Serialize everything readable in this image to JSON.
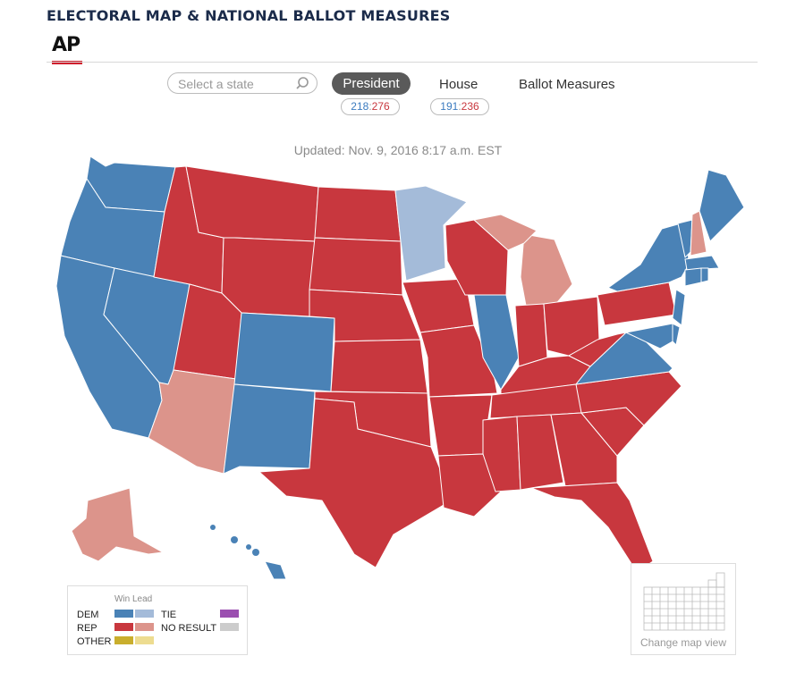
{
  "header": {
    "title": "ELECTORAL MAP & NATIONAL BALLOT MEASURES",
    "logo_text": "AP"
  },
  "search": {
    "placeholder": "Select a state"
  },
  "tabs": [
    {
      "label": "President",
      "active": true,
      "dem": "218",
      "rep": "276"
    },
    {
      "label": "House",
      "active": false,
      "dem": "191",
      "rep": "236"
    },
    {
      "label": "Ballot Measures",
      "active": false
    }
  ],
  "updated": "Updated: Nov. 9, 2016 8:17 a.m. EST",
  "colors": {
    "dem_win": "#4a82b6",
    "dem_lead": "#a4bbd9",
    "rep_win": "#c8373e",
    "rep_lead": "#dc948b",
    "other_win": "#c9ae2d",
    "other_lead": "#eddc90",
    "tie": "#9b4fb0",
    "no_result": "#cccccc"
  },
  "map_states": {
    "WA": "dem_win",
    "OR": "dem_win",
    "CA": "dem_win",
    "NV": "dem_win",
    "CO": "dem_win",
    "NM": "dem_win",
    "HI": "dem_win",
    "IL": "dem_win",
    "VA": "dem_win",
    "NY": "dem_win",
    "VT": "dem_win",
    "ME": "dem_win",
    "MA": "dem_win",
    "CT": "dem_win",
    "RI": "dem_win",
    "NJ": "dem_win",
    "DE": "dem_win",
    "MD": "dem_win",
    "MN": "dem_lead",
    "ID": "rep_win",
    "MT": "rep_win",
    "WY": "rep_win",
    "UT": "rep_win",
    "ND": "rep_win",
    "SD": "rep_win",
    "NE": "rep_win",
    "KS": "rep_win",
    "OK": "rep_win",
    "TX": "rep_win",
    "IA": "rep_win",
    "MO": "rep_win",
    "AR": "rep_win",
    "LA": "rep_win",
    "WI": "rep_win",
    "IN": "rep_win",
    "OH": "rep_win",
    "KY": "rep_win",
    "TN": "rep_win",
    "MS": "rep_win",
    "AL": "rep_win",
    "GA": "rep_win",
    "FL": "rep_win",
    "SC": "rep_win",
    "NC": "rep_win",
    "WV": "rep_win",
    "PA": "rep_win",
    "AZ": "rep_lead",
    "MI": "rep_lead",
    "NH": "rep_lead",
    "AK": "rep_lead"
  },
  "legend": {
    "header": "Win Lead",
    "dem": "DEM",
    "rep": "REP",
    "other": "OTHER",
    "tie": "TIE",
    "no_result": "NO RESULT"
  },
  "map_view": {
    "label": "Change map view"
  }
}
